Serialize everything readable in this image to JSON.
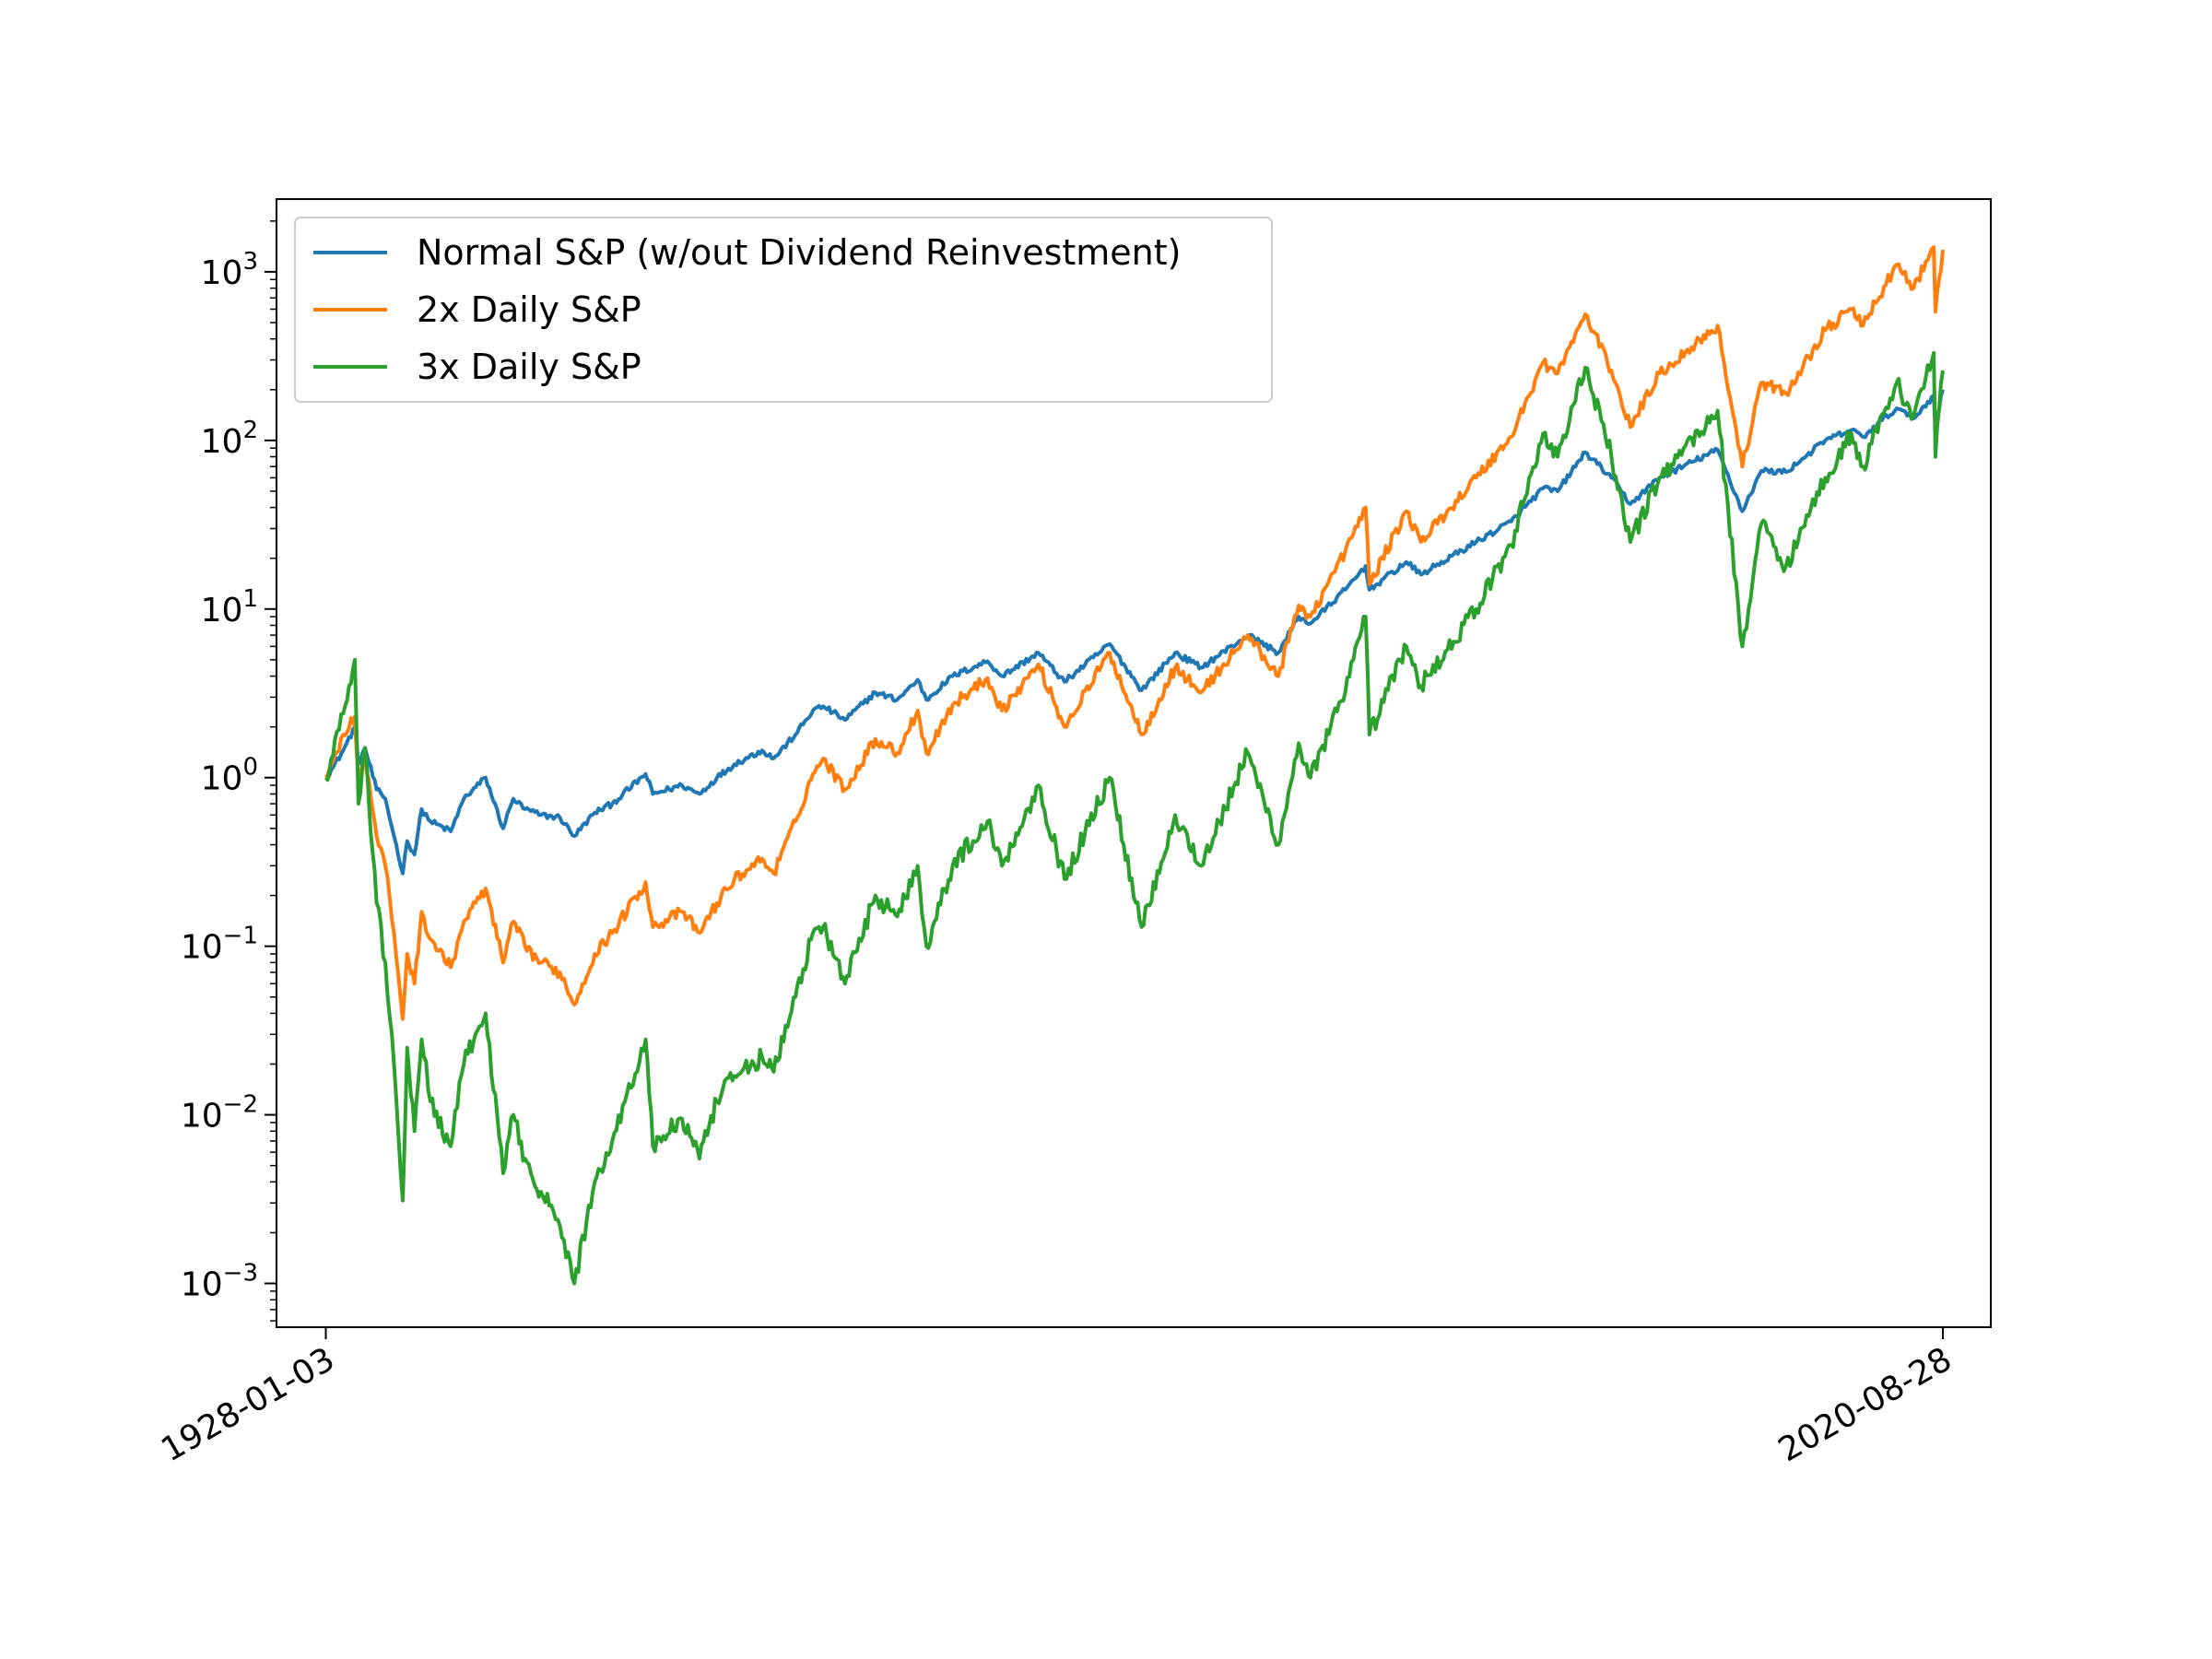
{
  "chart_data": {
    "type": "line",
    "title": "",
    "xlabel": "",
    "ylabel": "",
    "yscale": "log",
    "ylim": [
      0.00055,
      2700
    ],
    "xlim": [
      "1925-03-07",
      "2023-05-27"
    ],
    "grid": false,
    "legend_position": "upper-left",
    "x_ticks": [
      "1928-01-03",
      "2020-08-28"
    ],
    "y_ticks": [
      {
        "value": 0.001,
        "base": "10",
        "exp": "−3"
      },
      {
        "value": 0.01,
        "base": "10",
        "exp": "−2"
      },
      {
        "value": 0.1,
        "base": "10",
        "exp": "−1"
      },
      {
        "value": 1,
        "base": "10",
        "exp": "0"
      },
      {
        "value": 10,
        "base": "10",
        "exp": "1"
      },
      {
        "value": 100,
        "base": "10",
        "exp": "2"
      },
      {
        "value": 1000,
        "base": "10",
        "exp": "3"
      }
    ],
    "series": [
      {
        "name": "Normal S&P (w/out Dividend Reinvestment)",
        "color": "#1f77b4",
        "points": [
          [
            "1928-01-03",
            1.0
          ],
          [
            "1928-06-01",
            1.15
          ],
          [
            "1929-01-01",
            1.45
          ],
          [
            "1929-09-01",
            2.0
          ],
          [
            "1929-11-15",
            1.2
          ],
          [
            "1930-04-01",
            1.5
          ],
          [
            "1930-12-01",
            0.85
          ],
          [
            "1931-06-01",
            0.75
          ],
          [
            "1931-12-01",
            0.45
          ],
          [
            "1932-06-01",
            0.27
          ],
          [
            "1932-09-01",
            0.42
          ],
          [
            "1933-02-01",
            0.35
          ],
          [
            "1933-07-01",
            0.65
          ],
          [
            "1934-01-01",
            0.55
          ],
          [
            "1935-03-01",
            0.48
          ],
          [
            "1935-12-01",
            0.75
          ],
          [
            "1937-03-01",
            1.0
          ],
          [
            "1938-03-01",
            0.5
          ],
          [
            "1938-10-01",
            0.75
          ],
          [
            "1939-06-01",
            0.65
          ],
          [
            "1940-05-01",
            0.6
          ],
          [
            "1941-06-01",
            0.58
          ],
          [
            "1942-04-01",
            0.45
          ],
          [
            "1943-06-01",
            0.62
          ],
          [
            "1944-06-01",
            0.7
          ],
          [
            "1946-05-01",
            1.05
          ],
          [
            "1946-10-01",
            0.8
          ],
          [
            "1948-06-01",
            0.9
          ],
          [
            "1949-06-01",
            0.8
          ],
          [
            "1950-06-01",
            1.0
          ],
          [
            "1951-06-01",
            1.2
          ],
          [
            "1953-01-01",
            1.45
          ],
          [
            "1953-09-01",
            1.3
          ],
          [
            "1954-12-01",
            1.8
          ],
          [
            "1955-12-01",
            2.5
          ],
          [
            "1956-07-01",
            2.65
          ],
          [
            "1957-10-01",
            2.2
          ],
          [
            "1959-07-01",
            3.2
          ],
          [
            "1960-10-01",
            2.9
          ],
          [
            "1961-12-01",
            3.8
          ],
          [
            "1962-06-01",
            2.9
          ],
          [
            "1963-12-01",
            4.0
          ],
          [
            "1965-12-01",
            4.9
          ],
          [
            "1966-10-01",
            4.0
          ],
          [
            "1968-11-01",
            5.5
          ],
          [
            "1970-05-01",
            3.7
          ],
          [
            "1972-12-01",
            6.2
          ],
          [
            "1974-10-01",
            3.3
          ],
          [
            "1976-09-01",
            5.5
          ],
          [
            "1978-03-01",
            4.5
          ],
          [
            "1980-11-01",
            7.0
          ],
          [
            "1982-08-01",
            5.5
          ],
          [
            "1983-10-01",
            9.0
          ],
          [
            "1984-06-01",
            8.2
          ],
          [
            "1986-06-01",
            13.0
          ],
          [
            "1987-08-01",
            18.0
          ],
          [
            "1987-10-20",
            13.0
          ],
          [
            "1989-12-01",
            19.0
          ],
          [
            "1990-10-01",
            16.0
          ],
          [
            "1993-12-01",
            25.0
          ],
          [
            "1995-12-01",
            33.0
          ],
          [
            "1997-10-01",
            52.0
          ],
          [
            "1998-08-01",
            50.0
          ],
          [
            "2000-03-01",
            85.0
          ],
          [
            "2001-09-01",
            60.0
          ],
          [
            "2002-10-01",
            42.0
          ],
          [
            "2004-06-01",
            60.0
          ],
          [
            "2007-10-01",
            88.0
          ],
          [
            "2009-03-01",
            38.0
          ],
          [
            "2010-04-01",
            66.0
          ],
          [
            "2011-09-01",
            65.0
          ],
          [
            "2013-12-01",
            100.0
          ],
          [
            "2015-06-01",
            115.0
          ],
          [
            "2016-02-01",
            105.0
          ],
          [
            "2018-01-01",
            155.0
          ],
          [
            "2018-12-24",
            135.0
          ],
          [
            "2020-02-19",
            185.0
          ],
          [
            "2020-03-23",
            123.0
          ],
          [
            "2020-08-28",
            200.0
          ]
        ]
      },
      {
        "name": "2x Daily S&P",
        "color": "#ff7f0e",
        "points": [
          [
            "1928-01-03",
            1.0
          ],
          [
            "1928-06-01",
            1.25
          ],
          [
            "1929-01-01",
            1.8
          ],
          [
            "1929-09-01",
            2.3
          ],
          [
            "1929-11-15",
            1.0
          ],
          [
            "1930-04-01",
            1.3
          ],
          [
            "1930-12-01",
            0.45
          ],
          [
            "1931-06-01",
            0.3
          ],
          [
            "1931-12-01",
            0.12
          ],
          [
            "1932-06-01",
            0.037
          ],
          [
            "1932-09-01",
            0.09
          ],
          [
            "1933-02-01",
            0.06
          ],
          [
            "1933-07-01",
            0.16
          ],
          [
            "1934-01-01",
            0.11
          ],
          [
            "1935-03-01",
            0.075
          ],
          [
            "1935-12-01",
            0.14
          ],
          [
            "1937-03-01",
            0.22
          ],
          [
            "1938-03-01",
            0.08
          ],
          [
            "1938-10-01",
            0.14
          ],
          [
            "1939-06-01",
            0.1
          ],
          [
            "1940-05-01",
            0.08
          ],
          [
            "1941-06-01",
            0.07
          ],
          [
            "1942-04-01",
            0.045
          ],
          [
            "1943-06-01",
            0.09
          ],
          [
            "1944-06-01",
            0.12
          ],
          [
            "1946-05-01",
            0.24
          ],
          [
            "1946-10-01",
            0.13
          ],
          [
            "1948-06-01",
            0.16
          ],
          [
            "1949-06-01",
            0.12
          ],
          [
            "1950-06-01",
            0.18
          ],
          [
            "1951-06-01",
            0.25
          ],
          [
            "1953-01-01",
            0.33
          ],
          [
            "1953-09-01",
            0.27
          ],
          [
            "1954-12-01",
            0.55
          ],
          [
            "1955-12-01",
            1.05
          ],
          [
            "1956-07-01",
            1.3
          ],
          [
            "1957-10-01",
            0.85
          ],
          [
            "1959-07-01",
            1.7
          ],
          [
            "1960-10-01",
            1.4
          ],
          [
            "1961-12-01",
            2.5
          ],
          [
            "1962-06-01",
            1.4
          ],
          [
            "1963-12-01",
            2.7
          ],
          [
            "1965-12-01",
            3.9
          ],
          [
            "1966-10-01",
            2.5
          ],
          [
            "1968-11-01",
            4.7
          ],
          [
            "1970-05-01",
            2.0
          ],
          [
            "1972-12-01",
            5.5
          ],
          [
            "1974-10-01",
            1.8
          ],
          [
            "1976-09-01",
            4.5
          ],
          [
            "1978-03-01",
            3.2
          ],
          [
            "1980-11-01",
            7.0
          ],
          [
            "1982-08-01",
            4.0
          ],
          [
            "1983-10-01",
            10.5
          ],
          [
            "1984-06-01",
            9.0
          ],
          [
            "1986-06-01",
            22.0
          ],
          [
            "1987-08-01",
            40.0
          ],
          [
            "1987-10-20",
            14.0
          ],
          [
            "1989-12-01",
            38.0
          ],
          [
            "1990-10-01",
            25.0
          ],
          [
            "1993-12-01",
            60.0
          ],
          [
            "1995-12-01",
            105.0
          ],
          [
            "1997-10-01",
            290.0
          ],
          [
            "1998-08-01",
            250.0
          ],
          [
            "2000-03-01",
            560.0
          ],
          [
            "2001-09-01",
            260.0
          ],
          [
            "2002-10-01",
            120.0
          ],
          [
            "2004-06-01",
            250.0
          ],
          [
            "2007-10-01",
            480.0
          ],
          [
            "2009-03-01",
            70.0
          ],
          [
            "2010-04-01",
            220.0
          ],
          [
            "2011-09-01",
            190.0
          ],
          [
            "2013-12-01",
            450.0
          ],
          [
            "2015-06-01",
            600.0
          ],
          [
            "2016-02-01",
            480.0
          ],
          [
            "2018-01-01",
            1100.0
          ],
          [
            "2018-12-24",
            800.0
          ],
          [
            "2020-02-19",
            1400.0
          ],
          [
            "2020-03-23",
            580.0
          ],
          [
            "2020-08-28",
            1350.0
          ]
        ]
      },
      {
        "name": "3x Daily S&P",
        "color": "#2ca02c",
        "points": [
          [
            "1928-01-03",
            1.0
          ],
          [
            "1928-06-01",
            1.35
          ],
          [
            "1929-01-01",
            2.4
          ],
          [
            "1929-09-01",
            5.0
          ],
          [
            "1929-11-15",
            0.7
          ],
          [
            "1930-04-01",
            1.5
          ],
          [
            "1930-12-01",
            0.18
          ],
          [
            "1931-06-01",
            0.08
          ],
          [
            "1931-12-01",
            0.02
          ],
          [
            "1932-06-01",
            0.0031
          ],
          [
            "1932-09-01",
            0.025
          ],
          [
            "1933-02-01",
            0.008
          ],
          [
            "1933-07-01",
            0.028
          ],
          [
            "1934-01-01",
            0.012
          ],
          [
            "1935-03-01",
            0.0065
          ],
          [
            "1935-12-01",
            0.02
          ],
          [
            "1937-03-01",
            0.04
          ],
          [
            "1938-03-01",
            0.0045
          ],
          [
            "1938-10-01",
            0.01
          ],
          [
            "1939-06-01",
            0.0055
          ],
          [
            "1940-05-01",
            0.0035
          ],
          [
            "1941-06-01",
            0.0022
          ],
          [
            "1942-04-01",
            0.001
          ],
          [
            "1943-06-01",
            0.004
          ],
          [
            "1944-06-01",
            0.007
          ],
          [
            "1946-05-01",
            0.028
          ],
          [
            "1946-10-01",
            0.0065
          ],
          [
            "1948-06-01",
            0.0095
          ],
          [
            "1949-06-01",
            0.0055
          ],
          [
            "1950-06-01",
            0.012
          ],
          [
            "1951-06-01",
            0.017
          ],
          [
            "1953-01-01",
            0.022
          ],
          [
            "1953-09-01",
            0.018
          ],
          [
            "1954-12-01",
            0.05
          ],
          [
            "1955-12-01",
            0.12
          ],
          [
            "1956-07-01",
            0.13
          ],
          [
            "1957-10-01",
            0.06
          ],
          [
            "1959-07-01",
            0.2
          ],
          [
            "1960-10-01",
            0.15
          ],
          [
            "1961-12-01",
            0.3
          ],
          [
            "1962-06-01",
            0.1
          ],
          [
            "1963-12-01",
            0.3
          ],
          [
            "1965-12-01",
            0.55
          ],
          [
            "1966-10-01",
            0.3
          ],
          [
            "1968-11-01",
            0.9
          ],
          [
            "1970-05-01",
            0.25
          ],
          [
            "1972-12-01",
            1.0
          ],
          [
            "1974-10-01",
            0.13
          ],
          [
            "1976-09-01",
            0.6
          ],
          [
            "1978-03-01",
            0.3
          ],
          [
            "1980-11-01",
            1.4
          ],
          [
            "1982-08-01",
            0.4
          ],
          [
            "1983-10-01",
            1.6
          ],
          [
            "1984-06-01",
            1.0
          ],
          [
            "1986-06-01",
            3.2
          ],
          [
            "1987-08-01",
            9.0
          ],
          [
            "1987-10-20",
            1.8
          ],
          [
            "1989-12-01",
            6.0
          ],
          [
            "1990-10-01",
            3.5
          ],
          [
            "1993-12-01",
            10.0
          ],
          [
            "1995-12-01",
            24.0
          ],
          [
            "1997-10-01",
            110.0
          ],
          [
            "1998-08-01",
            80.0
          ],
          [
            "2000-03-01",
            270.0
          ],
          [
            "2001-09-01",
            80.0
          ],
          [
            "2002-10-01",
            25.0
          ],
          [
            "2004-06-01",
            60.0
          ],
          [
            "2007-10-01",
            150.0
          ],
          [
            "2009-03-01",
            6.0
          ],
          [
            "2010-04-01",
            32.0
          ],
          [
            "2011-09-01",
            18.0
          ],
          [
            "2013-12-01",
            60.0
          ],
          [
            "2015-06-01",
            110.0
          ],
          [
            "2016-02-01",
            70.0
          ],
          [
            "2018-01-01",
            220.0
          ],
          [
            "2018-12-24",
            140.0
          ],
          [
            "2020-02-19",
            330.0
          ],
          [
            "2020-03-23",
            80.0
          ],
          [
            "2020-08-28",
            260.0
          ]
        ]
      }
    ]
  }
}
